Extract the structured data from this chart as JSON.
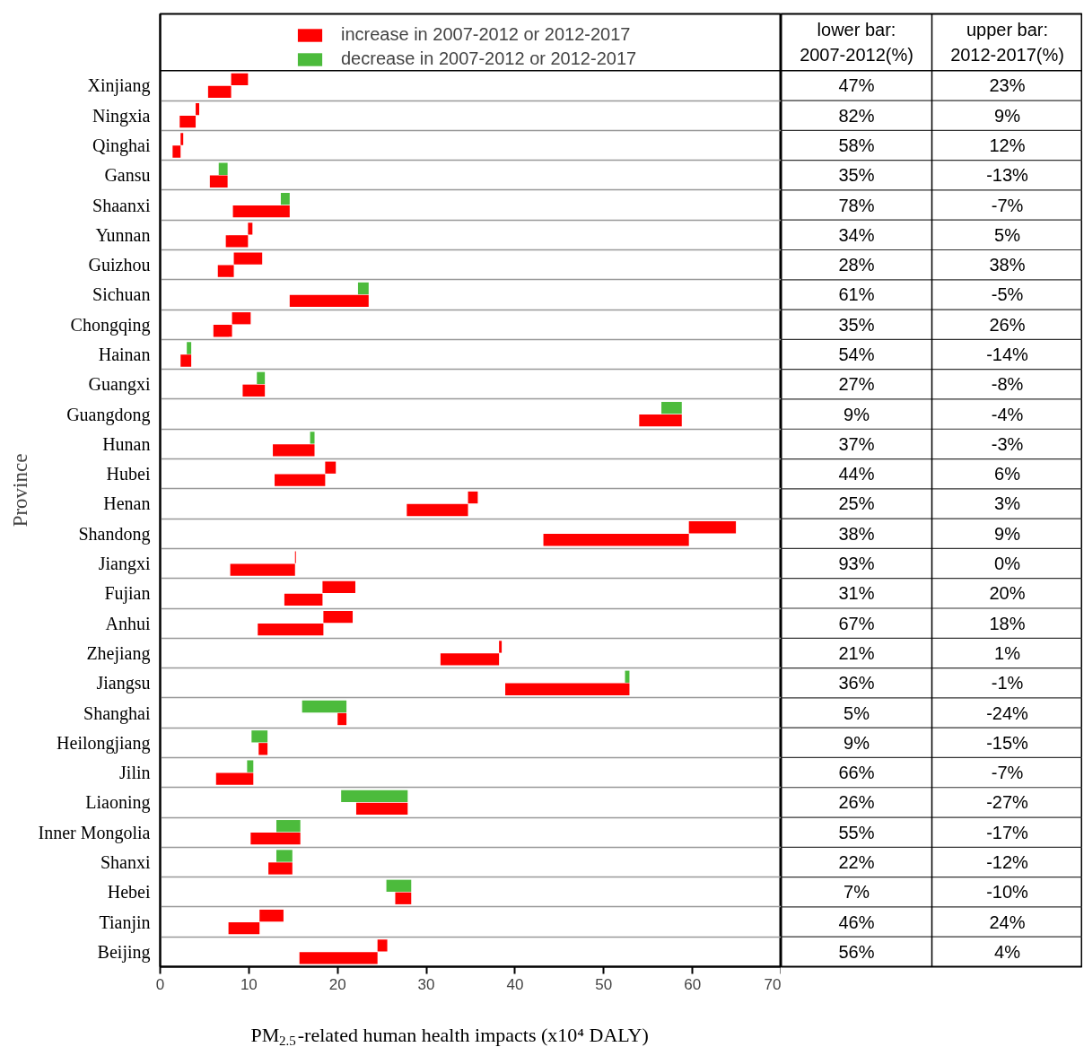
{
  "chart_data": [
    {
      "type": "bar",
      "orientation": "horizontal",
      "xlabel": "PM$_{2.5}$-related human health impacts (x10⁴ DALY)",
      "ylabel": "Province",
      "categories": [
        "Xinjiang",
        "Ningxia",
        "Qinghai",
        "Gansu",
        "Shaanxi",
        "Yunnan",
        "Guizhou",
        "Sichuan",
        "Chongqing",
        "Hainan",
        "Guangxi",
        "Guangdong",
        "Hunan",
        "Hubei",
        "Henan",
        "Shandong",
        "Jiangxi",
        "Fujian",
        "Anhui",
        "Zhejiang",
        "Jiangsu",
        "Shanghai",
        "Heilongjiang",
        "Jilin",
        "Liaoning",
        "Inner Mongolia",
        "Shanxi",
        "Hebei",
        "Tianjin",
        "Beijing"
      ],
      "series": [
        {
          "name": "increase in 2007-2012 or 2012-2017",
          "color": "#ff0000",
          "base": [
            8.0,
            4.0,
            2.3,
            null,
            null,
            9.9,
            8.3,
            null,
            8.1,
            null,
            null,
            null,
            null,
            18.6,
            34.7,
            59.6,
            15.2,
            18.3,
            18.4,
            38.2,
            null,
            null,
            null,
            null,
            null,
            null,
            null,
            null,
            11.2,
            24.5
          ],
          "values": [
            1.9,
            0.4,
            0.3,
            null,
            null,
            0.5,
            3.2,
            null,
            2.1,
            null,
            null,
            null,
            null,
            1.2,
            1.1,
            5.3,
            0.1,
            3.7,
            3.3,
            0.3,
            null,
            null,
            null,
            null,
            null,
            null,
            null,
            null,
            2.7,
            1.1
          ]
        },
        {
          "name": "decrease in 2007-2012 or 2012-2017",
          "color": "#4cbb3c",
          "base": [
            null,
            null,
            null,
            7.6,
            14.6,
            null,
            null,
            23.5,
            null,
            3.5,
            11.8,
            58.8,
            17.4,
            null,
            null,
            null,
            null,
            null,
            null,
            null,
            52.9,
            21.0,
            12.1,
            10.5,
            27.9,
            15.8,
            14.9,
            28.3,
            null,
            null
          ],
          "values": [
            null,
            null,
            null,
            -1.0,
            -1.0,
            null,
            null,
            -1.2,
            null,
            -0.5,
            -0.9,
            -2.3,
            -0.5,
            null,
            null,
            null,
            null,
            null,
            null,
            null,
            -0.5,
            -5.0,
            -1.8,
            -0.7,
            -7.5,
            -2.7,
            -1.8,
            -2.8,
            null,
            null
          ]
        },
        {
          "color": "#ff0000",
          "base": [
            5.4,
            2.2,
            1.4,
            5.6,
            8.2,
            7.4,
            6.5,
            14.6,
            6.0,
            2.3,
            9.3,
            54.0,
            12.7,
            12.9,
            27.8,
            43.2,
            7.9,
            14.0,
            11.0,
            31.6,
            38.9,
            20.0,
            11.1,
            6.3,
            22.1,
            10.2,
            12.2,
            26.5,
            7.7,
            15.7
          ],
          "values": [
            2.6,
            1.8,
            0.9,
            2.0,
            6.4,
            2.5,
            1.8,
            8.9,
            2.1,
            1.2,
            2.5,
            4.8,
            4.7,
            5.7,
            6.9,
            16.4,
            7.3,
            4.3,
            7.4,
            6.6,
            14.0,
            1.0,
            1.0,
            4.2,
            5.8,
            5.6,
            2.7,
            1.8,
            3.5,
            8.8
          ]
        }
      ],
      "xlim": [
        0,
        70
      ],
      "xticks": [
        0,
        10,
        20,
        30,
        40,
        50,
        60,
        70
      ],
      "grid": "y",
      "legend": "top"
    },
    {
      "type": "other",
      "categories": [
        "lower bar: 2007-2012(%)",
        "upper bar: 2012-2017(%)"
      ],
      "annotations": [
        "47%",
        "23%",
        "82%",
        "9%",
        "58%",
        "12%",
        "35%",
        "-13%",
        "78%",
        "-7%",
        "34%",
        "5%",
        "28%",
        "38%",
        "61%",
        "-5%",
        "35%",
        "26%",
        "54%",
        "-14%",
        "27%",
        "-8%",
        "9%",
        "-4%",
        "37%",
        "-3%",
        "44%",
        "6%",
        "25%",
        "3%",
        "38%",
        "9%",
        "93%",
        "0%",
        "31%",
        "20%",
        "67%",
        "18%",
        "21%",
        "1%",
        "36%",
        "-1%",
        "5%",
        "-24%",
        "9%",
        "-15%",
        "66%",
        "-7%",
        "26%",
        "-27%",
        "55%",
        "-17%",
        "22%",
        "-12%",
        "7%",
        "-10%",
        "46%",
        "24%",
        "56%",
        "4%"
      ]
    }
  ]
}
